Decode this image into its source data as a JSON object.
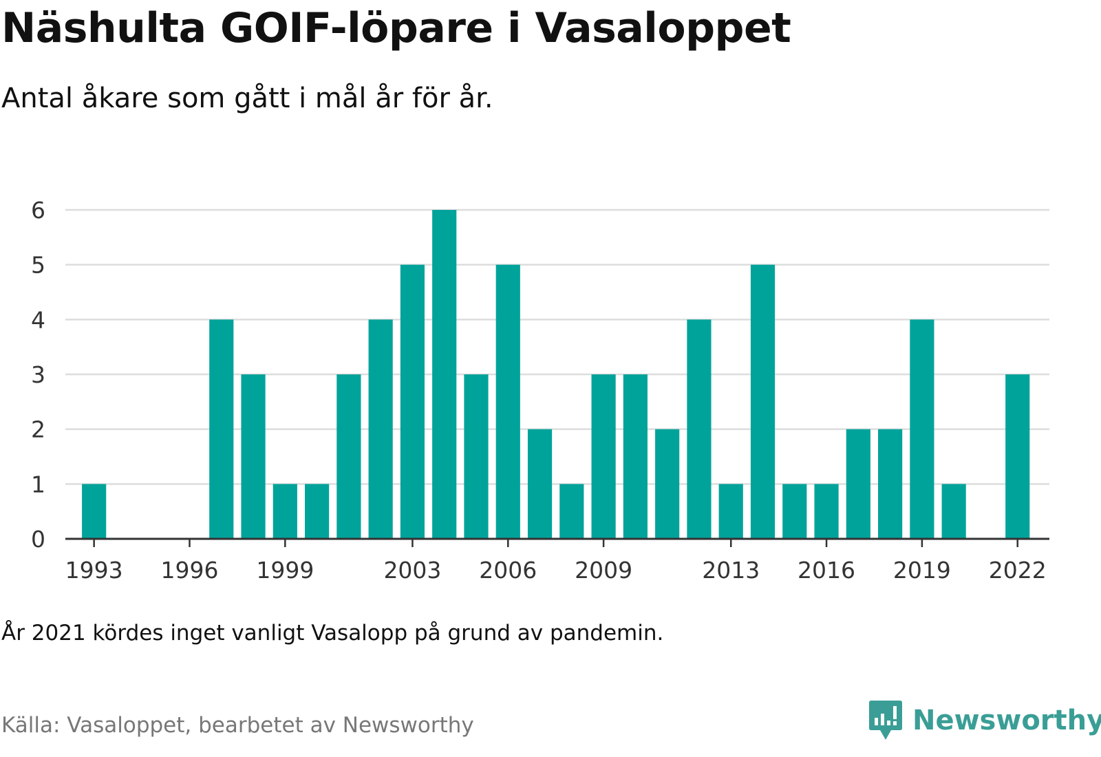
{
  "title": "Näshulta GOIF-löpare i Vasaloppet",
  "subtitle": "Antal åkare som gått i mål år för år.",
  "note": "År 2021 kördes inget vanligt Vasalopp på grund av pandemin.",
  "source": "Källa: Vasaloppet, bearbetet av Newsworthy",
  "brand": {
    "name": "Newsworthy",
    "logo_icon": "newsworthy-logo-icon"
  },
  "colors": {
    "bar": "#00a39a",
    "brand": "#3a9e96",
    "grid": "#dddddd",
    "axis": "#333333",
    "text": "#111111",
    "muted": "#777777"
  },
  "chart_data": {
    "type": "bar",
    "title": "Näshulta GOIF-löpare i Vasaloppet",
    "subtitle": "Antal åkare som gått i mål år för år.",
    "xlabel": "",
    "ylabel": "",
    "x": [
      1993,
      1994,
      1995,
      1996,
      1997,
      1998,
      1999,
      2000,
      2001,
      2002,
      2003,
      2004,
      2005,
      2006,
      2007,
      2008,
      2009,
      2010,
      2011,
      2012,
      2013,
      2014,
      2015,
      2016,
      2017,
      2018,
      2019,
      2020,
      2021,
      2022
    ],
    "values": [
      1,
      0,
      0,
      0,
      4,
      3,
      1,
      1,
      3,
      4,
      5,
      6,
      3,
      5,
      2,
      1,
      3,
      3,
      2,
      4,
      1,
      5,
      1,
      1,
      2,
      2,
      4,
      1,
      0,
      3
    ],
    "x_ticks": [
      1993,
      1996,
      1999,
      2003,
      2006,
      2009,
      2013,
      2016,
      2019,
      2022
    ],
    "y_ticks": [
      0,
      1,
      2,
      3,
      4,
      5,
      6
    ],
    "ylim": [
      0,
      6
    ],
    "grid": true,
    "legend": "none"
  }
}
